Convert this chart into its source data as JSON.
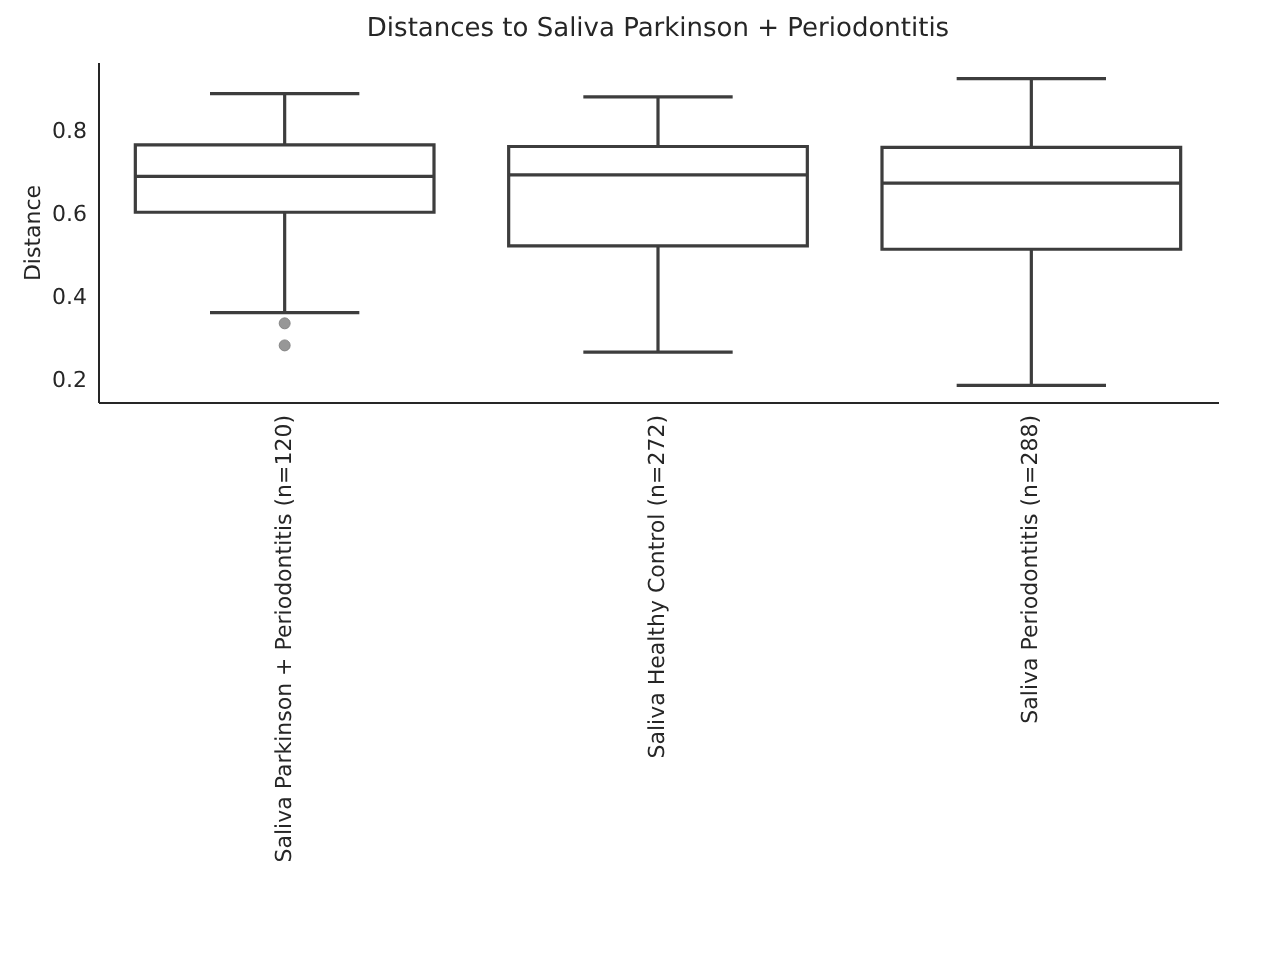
{
  "chart_data": {
    "type": "box",
    "title": "Distances to Saliva Parkinson + Periodontitis",
    "ylabel": "Distance",
    "categories": [
      "Saliva Parkinson + Periodontitis (n=120)",
      "Saliva Healthy Control (n=272)",
      "Saliva Periodontitis (n=288)"
    ],
    "series": [
      {
        "color": "#3d3d3d",
        "boxes": [
          {
            "low": 0.363,
            "q1": 0.604,
            "median": 0.69,
            "q3": 0.766,
            "high": 0.889,
            "outliers": [
              0.337,
              0.284
            ]
          },
          {
            "low": 0.268,
            "q1": 0.523,
            "median": 0.694,
            "q3": 0.762,
            "high": 0.881
          },
          {
            "low": 0.188,
            "q1": 0.515,
            "median": 0.674,
            "q3": 0.76,
            "high": 0.925
          }
        ]
      }
    ],
    "ylim": [
      0.148,
      0.965
    ],
    "yticks": [
      0.2,
      0.4,
      0.6,
      0.8
    ]
  }
}
